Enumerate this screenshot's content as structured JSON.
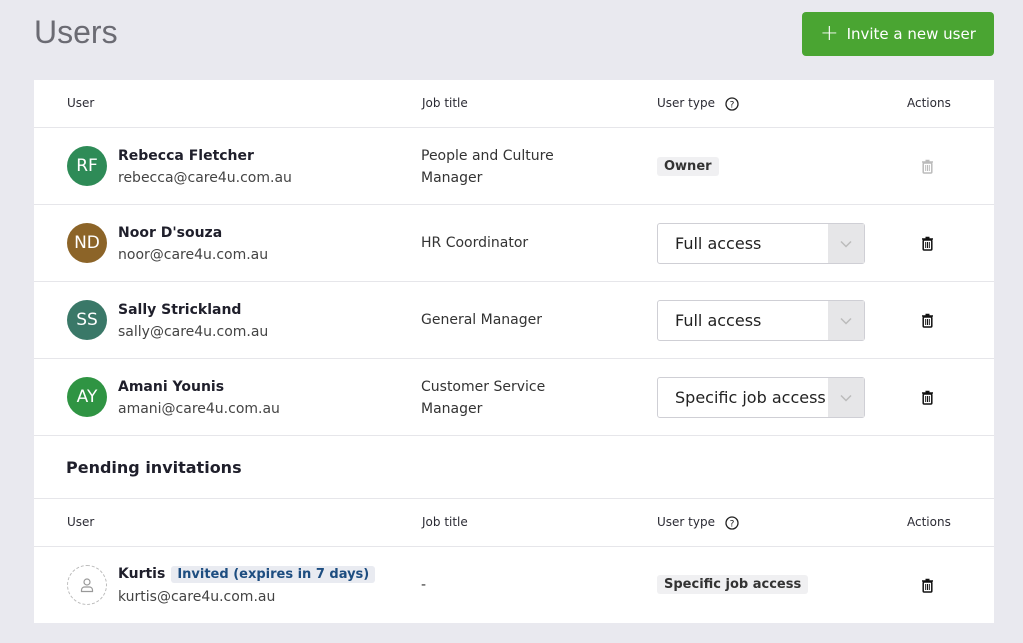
{
  "page": {
    "title": "Users",
    "invite_label": "Invite a new user"
  },
  "columns": {
    "user": "User",
    "job": "Job title",
    "type": "User type",
    "actions": "Actions"
  },
  "users": [
    {
      "initials": "RF",
      "color": "#2e8b57",
      "name": "Rebecca Fletcher",
      "email": "rebecca@care4u.com.au",
      "job1": "People and Culture",
      "job2": "Manager",
      "type": "Owner"
    },
    {
      "initials": "ND",
      "color": "#8c6428",
      "name": "Noor D'souza",
      "email": "noor@care4u.com.au",
      "job1": "HR Coordinator",
      "job2": "",
      "type": "Full access"
    },
    {
      "initials": "SS",
      "color": "#3a7868",
      "name": "Sally Strickland",
      "email": "sally@care4u.com.au",
      "job1": "General Manager",
      "job2": "",
      "type": "Full access"
    },
    {
      "initials": "AY",
      "color": "#2f9443",
      "name": "Amani Younis",
      "email": "amani@care4u.com.au",
      "job1": "Customer Service",
      "job2": "Manager",
      "type": "Specific job access"
    }
  ],
  "pending": {
    "title": "Pending invitations",
    "items": [
      {
        "name": "Kurtis",
        "status": "Invited (expires in 7 days)",
        "email": "kurtis@care4u.com.au",
        "job": "-",
        "type": "Specific job access"
      }
    ]
  }
}
